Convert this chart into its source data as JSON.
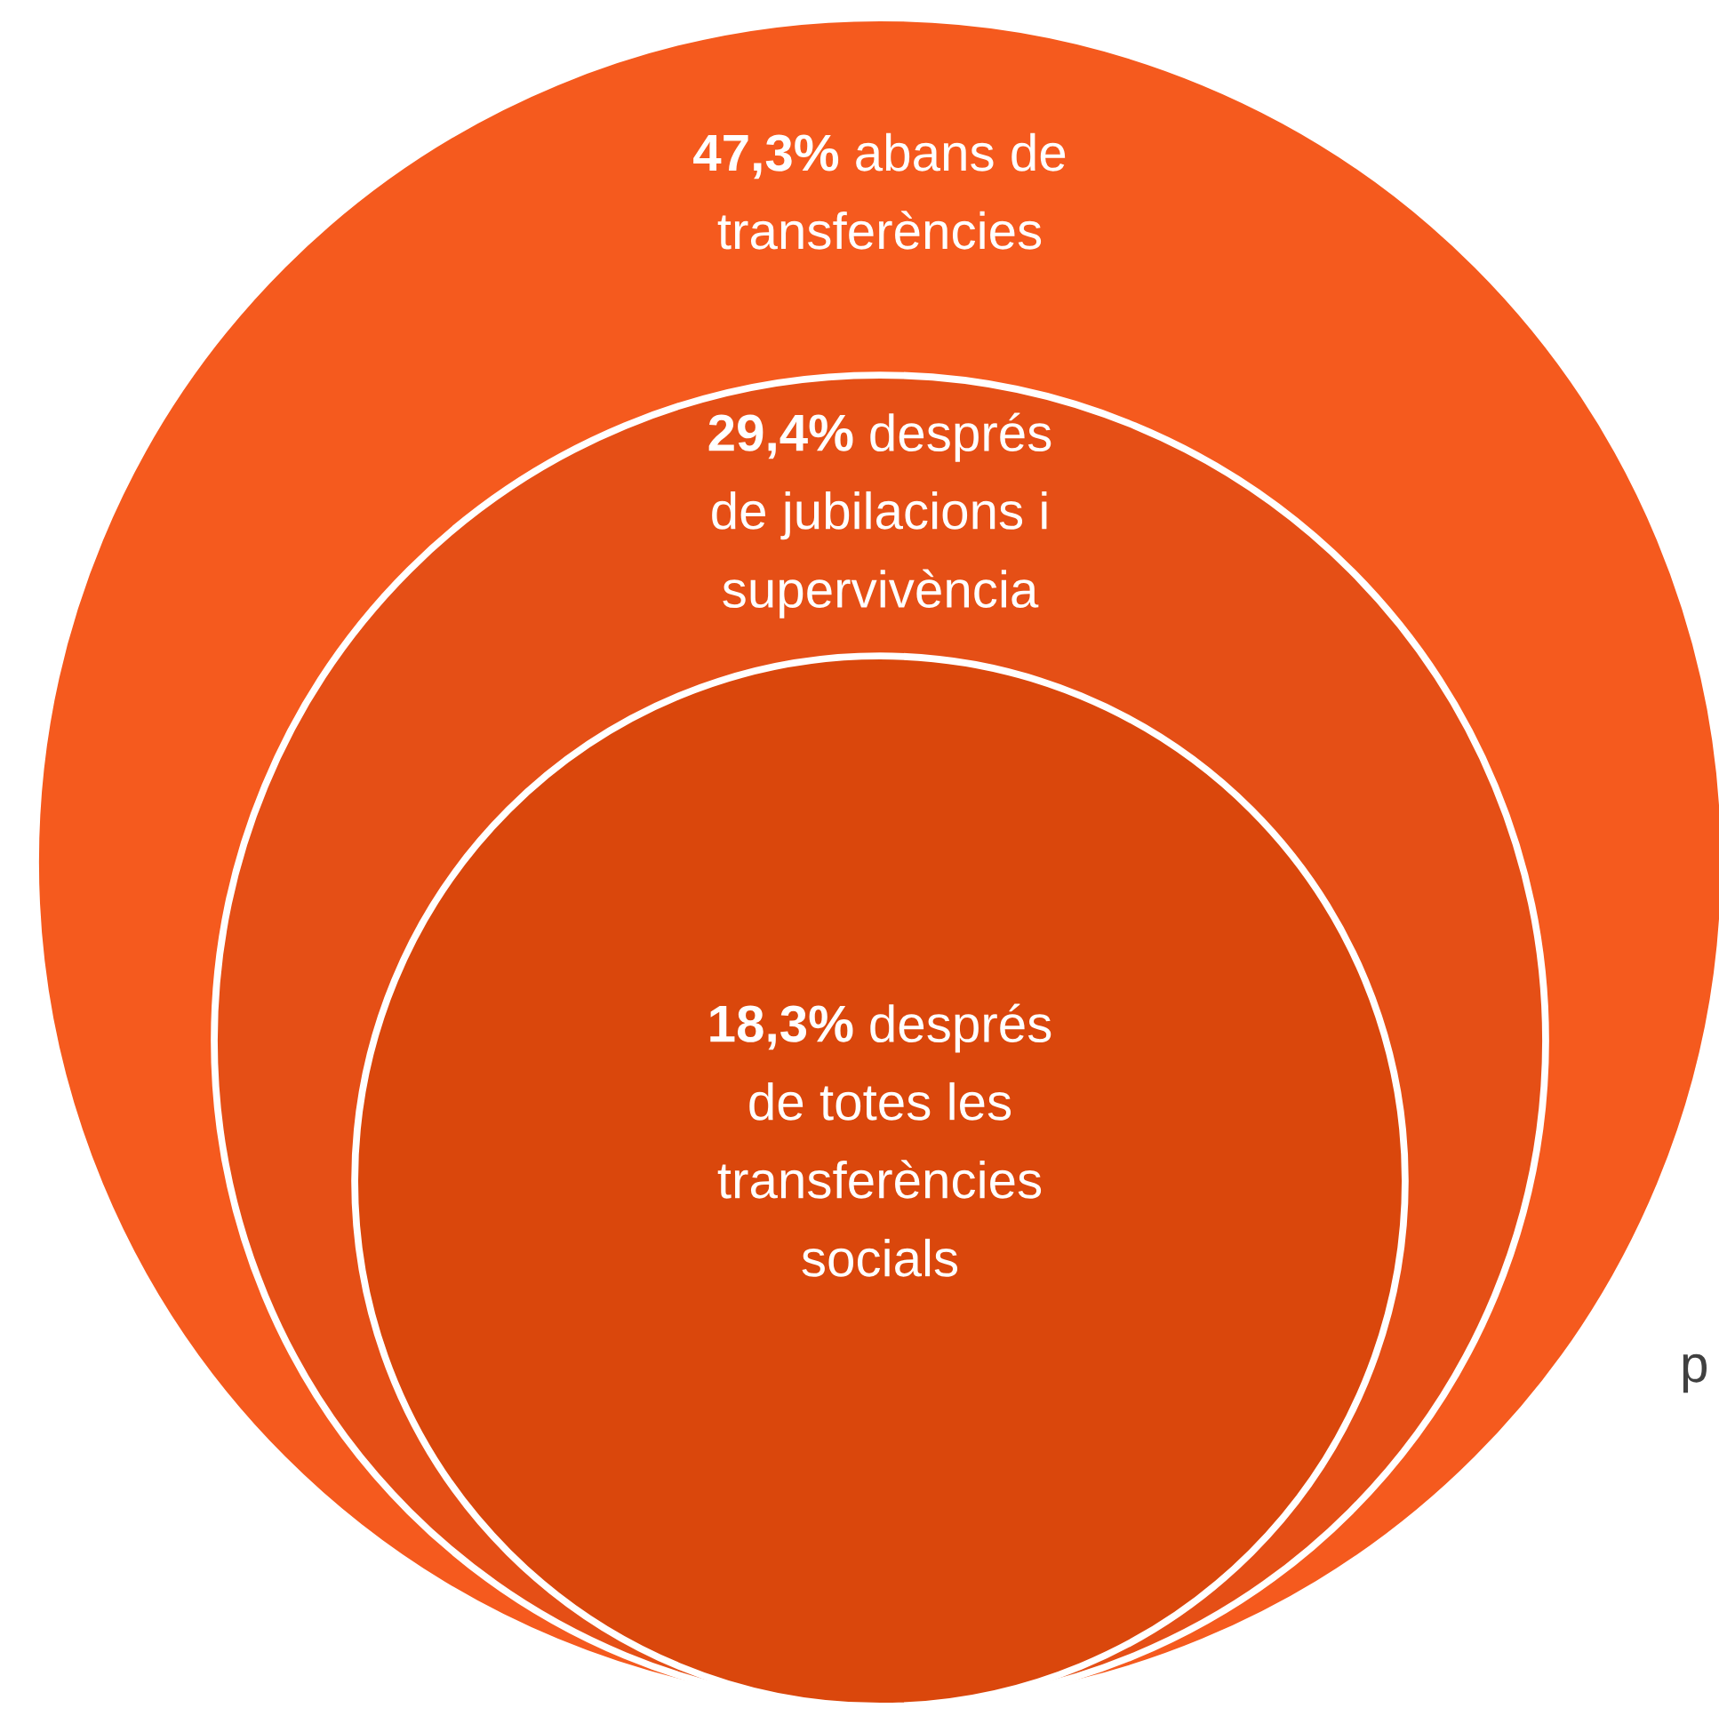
{
  "chart_data": {
    "type": "other",
    "categories": [
      "abans de\ntransferències",
      "després\nde jubilacions i\nsupervivència",
      "després\nde totes les\ntransferències\nsocials"
    ],
    "values": [
      47.3,
      29.4,
      18.3
    ],
    "value_labels": [
      "47,3%",
      "29,4%",
      "18,3%"
    ],
    "colors": [
      "#f55a1e",
      "#e54f16",
      "#da470c"
    ],
    "annotations": [
      {
        "text": "p"
      }
    ]
  }
}
